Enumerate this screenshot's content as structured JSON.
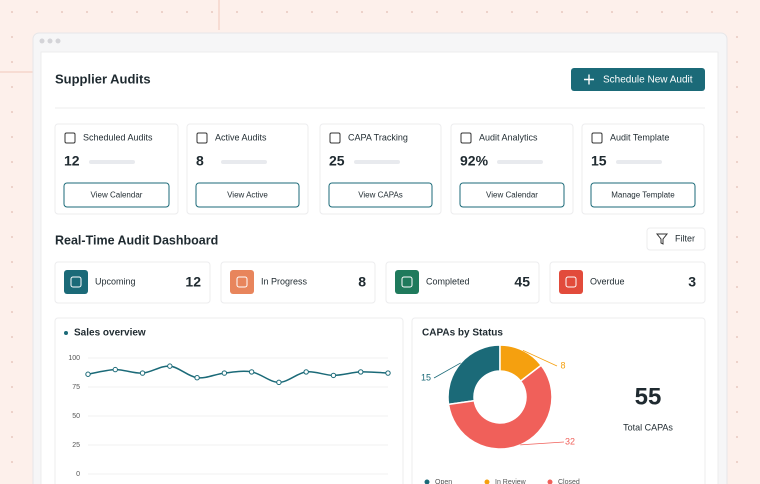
{
  "header": {
    "title": "Supplier Audits",
    "button": "Schedule New Audit"
  },
  "cards": [
    {
      "title": "Scheduled Audits",
      "value": "12",
      "action": "View Calendar"
    },
    {
      "title": "Active Audits",
      "value": "8",
      "action": "View Active"
    },
    {
      "title": "CAPA Tracking",
      "value": "25",
      "action": "View CAPAs"
    },
    {
      "title": "Audit Analytics",
      "value": "92%",
      "action": "View Calendar"
    },
    {
      "title": "Audit Template",
      "value": "15",
      "action": "Manage Template"
    }
  ],
  "dashboard": {
    "title": "Real-Time Audit Dashboard",
    "filter": "Filter",
    "status": [
      {
        "label": "Upcoming",
        "value": "12",
        "color": "#1b6a78"
      },
      {
        "label": "In Progress",
        "value": "8",
        "color": "#e8855c"
      },
      {
        "label": "Completed",
        "value": "45",
        "color": "#1f7a5c"
      },
      {
        "label": "Overdue",
        "value": "3",
        "color": "#e24b3b"
      }
    ]
  },
  "sales": {
    "title": "Sales overview",
    "type": "line",
    "color": "#1b6a78",
    "values": [
      86,
      90,
      87,
      93,
      83,
      87,
      88,
      79,
      88,
      85,
      88,
      87
    ],
    "ylim": [
      0,
      100
    ],
    "yticks": [
      0,
      25,
      50,
      75,
      100
    ],
    "grid": true
  },
  "capa": {
    "title": "CAPAs by Status",
    "type": "pie",
    "categories": [
      "Open",
      "In Review",
      "Closed"
    ],
    "values": [
      15,
      8,
      32
    ],
    "colors": [
      "#1b6a78",
      "#f5a00f",
      "#f0605a"
    ],
    "total": 55,
    "total_label": "Total CAPAs"
  }
}
